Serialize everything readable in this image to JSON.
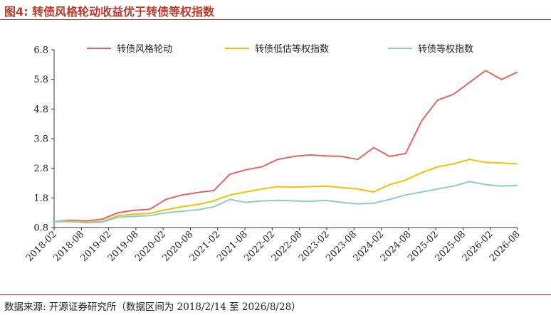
{
  "header": {
    "title": "图4:  转债风格轮动收益优于转债等权指数"
  },
  "footer": {
    "source": "数据来源:  开源证券研究所（数据区间为 2018/2/14 至 2026/8/28）"
  },
  "chart_data": {
    "type": "line",
    "title": "",
    "xlabel": "",
    "ylabel": "",
    "ylim": [
      0.8,
      6.8
    ],
    "yticks": [
      0.8,
      1.8,
      2.8,
      3.8,
      4.8,
      5.8,
      6.8
    ],
    "xticks": [
      "2018-02",
      "2018-08",
      "2019-02",
      "2019-08",
      "2020-02",
      "2020-08",
      "2021-02",
      "2021-08",
      "2022-02",
      "2022-08",
      "2023-02",
      "2023-08",
      "2024-02",
      "2024-08",
      "2025-02",
      "2025-08",
      "2026-02",
      "2026-08"
    ],
    "grid": false,
    "legend_position": "top",
    "series": [
      {
        "name": "转债风格轮动",
        "color": "#e06666",
        "values": [
          1.0,
          1.05,
          1.02,
          1.08,
          1.3,
          1.38,
          1.42,
          1.75,
          1.9,
          1.98,
          2.05,
          2.6,
          2.75,
          2.85,
          3.1,
          3.2,
          3.25,
          3.22,
          3.2,
          3.1,
          3.5,
          3.2,
          3.3,
          4.4,
          5.1,
          5.3,
          5.7,
          6.1,
          5.8,
          6.05
        ]
      },
      {
        "name": "转债低估等权指数",
        "color": "#f2c200",
        "values": [
          1.0,
          1.02,
          0.98,
          1.0,
          1.2,
          1.25,
          1.28,
          1.4,
          1.5,
          1.58,
          1.7,
          1.9,
          2.0,
          2.1,
          2.18,
          2.16,
          2.18,
          2.2,
          2.15,
          2.1,
          2.0,
          2.25,
          2.4,
          2.65,
          2.85,
          2.95,
          3.1,
          3.0,
          2.98,
          2.95
        ]
      },
      {
        "name": "转债等权指数",
        "color": "#8ecbcc",
        "values": [
          1.0,
          1.0,
          0.96,
          0.98,
          1.15,
          1.18,
          1.2,
          1.3,
          1.35,
          1.4,
          1.5,
          1.75,
          1.65,
          1.7,
          1.72,
          1.7,
          1.68,
          1.72,
          1.65,
          1.6,
          1.62,
          1.75,
          1.9,
          2.0,
          2.1,
          2.2,
          2.35,
          2.25,
          2.2,
          2.22
        ]
      }
    ]
  }
}
